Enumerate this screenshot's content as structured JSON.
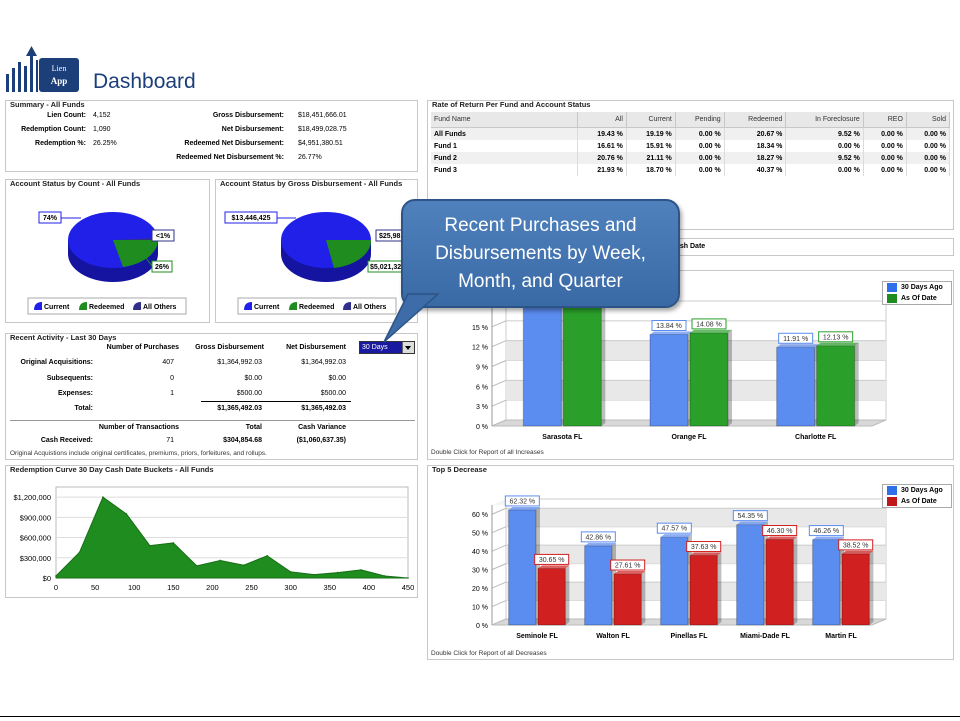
{
  "header": {
    "logo_text_1": "Lien",
    "logo_text_2": "App",
    "title": "Dashboard"
  },
  "summary": {
    "title": "Summary - All Funds",
    "left": [
      {
        "label": "Lien Count:",
        "value": "4,152"
      },
      {
        "label": "Redemption Count:",
        "value": "1,090"
      },
      {
        "label": "Redemption %:",
        "value": "26.25%"
      }
    ],
    "right": [
      {
        "label": "Gross Disbursement:",
        "value": "$18,451,666.01"
      },
      {
        "label": "Net Disbursement:",
        "value": "$18,499,028.75"
      },
      {
        "label": "Redeemed Net Disbursement:",
        "value": "$4,951,380.51"
      },
      {
        "label": "Redeemed Net Disbursement %:",
        "value": "26.77%"
      }
    ]
  },
  "pie_count": {
    "title": "Account Status by Count - All Funds",
    "labels": [
      "74%",
      "<1%",
      "26%"
    ],
    "legend": [
      "Current",
      "Redeemed",
      "All Others"
    ]
  },
  "pie_gross": {
    "title": "Account Status by Gross Disbursement - All Funds",
    "labels": [
      "$13,446,425",
      "$25,98",
      "$5,021,32"
    ],
    "legend": [
      "Current",
      "Redeemed",
      "All Others"
    ]
  },
  "colors": {
    "current": "#2020e8",
    "redeemed": "#1e8c1e",
    "others": "#30308a",
    "blue_bar": "#5b8cf0",
    "green_bar": "#2aa02a",
    "red_bar": "#d02020"
  },
  "activity": {
    "title": "Recent Activity - Last 30 Days",
    "dropdown": "30 Days",
    "headers": [
      "Number of Purchases",
      "Gross Disbursement",
      "Net Disbursement"
    ],
    "rows": [
      {
        "label": "Original Acquisitions:",
        "n": "407",
        "gross": "$1,364,992.03",
        "net": "$1,364,992.03"
      },
      {
        "label": "Subsequents:",
        "n": "0",
        "gross": "$0.00",
        "net": "$0.00"
      },
      {
        "label": "Expenses:",
        "n": "1",
        "gross": "$500.00",
        "net": "$500.00"
      },
      {
        "label": "Total:",
        "n": "",
        "gross": "$1,365,492.03",
        "net": "$1,365,492.03"
      }
    ],
    "headers2": [
      "Number of Transactions",
      "Total",
      "Cash Variance"
    ],
    "cash": {
      "label": "Cash Received:",
      "n": "71",
      "total": "$304,854.68",
      "variance": "($1,060,637.35)"
    },
    "note": "Original Acquistions include original certificates, premiums, priors, forfeitures, and rollups."
  },
  "rate": {
    "title": "Rate of Return Per Fund and Account Status",
    "columns": [
      "Fund Name",
      "All",
      "Current",
      "Pending",
      "Redeemed",
      "In Foreclosure",
      "REO",
      "Sold"
    ],
    "rows": [
      [
        "All Funds",
        "19.43 %",
        "19.19 %",
        "0.00 %",
        "20.67 %",
        "9.52 %",
        "0.00 %",
        "0.00 %"
      ],
      [
        "Fund 1",
        "16.61 %",
        "15.91 %",
        "0.00 %",
        "18.34 %",
        "0.00 %",
        "0.00 %",
        "0.00 %"
      ],
      [
        "Fund 2",
        "20.76 %",
        "21.11 %",
        "0.00 %",
        "18.27 %",
        "9.52 %",
        "0.00 %",
        "0.00 %"
      ],
      [
        "Fund 3",
        "21.93 %",
        "18.70 %",
        "0.00 %",
        "40.37 %",
        "0.00 %",
        "0.00 %",
        "0.00 %"
      ]
    ]
  },
  "callout": {
    "text": "Recent Purchases and Disbursements by Week, Month, and Quarter"
  },
  "cash_date_fragment": "ash Date",
  "increase_chart": {
    "footer": "Double Click for Report of all Increases",
    "legend": [
      "30 Days Ago",
      "As Of Date"
    ],
    "categories": [
      "Sarasota FL",
      "Orange FL",
      "Charlotte FL"
    ],
    "series": [
      {
        "name": "30 Days Ago",
        "values": [
          19.5,
          13.84,
          11.91
        ]
      },
      {
        "name": "As Of Date",
        "values": [
          19.5,
          14.08,
          12.13
        ]
      }
    ],
    "labels": [
      [
        "",
        ""
      ],
      [
        "13.84 %",
        "14.08 %"
      ],
      [
        "11.91 %",
        "12.13 %"
      ]
    ],
    "yticks": [
      "0 %",
      "3 %",
      "6 %",
      "9 %",
      "12 %",
      "15 %"
    ],
    "ylim": [
      0,
      18
    ]
  },
  "decrease_chart": {
    "title": "Top 5 Decrease",
    "footer": "Double Click for Report of all Decreases",
    "legend": [
      "30 Days Ago",
      "As Of Date"
    ],
    "categories": [
      "Seminole FL",
      "Walton FL",
      "Pinellas FL",
      "Miami-Dade FL",
      "Martin FL"
    ],
    "series": [
      {
        "name": "30 Days Ago",
        "values": [
          62.32,
          42.86,
          47.57,
          54.35,
          46.26
        ]
      },
      {
        "name": "As Of Date",
        "values": [
          30.65,
          27.61,
          37.63,
          46.3,
          38.52
        ]
      }
    ],
    "labels": [
      [
        "62.32 %",
        "30.65 %"
      ],
      [
        "42.86 %",
        "27.61 %"
      ],
      [
        "47.57 %",
        "37.63 %"
      ],
      [
        "54.35 %",
        "46.30 %"
      ],
      [
        "46.26 %",
        "38.52 %"
      ]
    ],
    "yticks": [
      "0 %",
      "10 %",
      "20 %",
      "30 %",
      "40 %",
      "50 %",
      "60 %"
    ],
    "ylim": [
      0,
      65
    ]
  },
  "chart_data": {
    "type": "area",
    "title": "Redemption Curve 30 Day Cash Date Buckets - All Funds",
    "x": [
      0,
      30,
      60,
      90,
      120,
      150,
      180,
      210,
      240,
      270,
      300,
      330,
      360,
      390,
      420,
      450
    ],
    "values": [
      30000,
      380000,
      1200000,
      950000,
      480000,
      520000,
      180000,
      260000,
      190000,
      330000,
      90000,
      50000,
      80000,
      120000,
      30000,
      0
    ],
    "xticks": [
      "0",
      "50",
      "100",
      "150",
      "200",
      "250",
      "300",
      "350",
      "400",
      "450"
    ],
    "yticks": [
      "$0",
      "$300,000",
      "$600,000",
      "$900,000",
      "$1,200,000"
    ],
    "xlim": [
      0,
      450
    ],
    "ylim": [
      0,
      1350000
    ],
    "grid": true
  }
}
